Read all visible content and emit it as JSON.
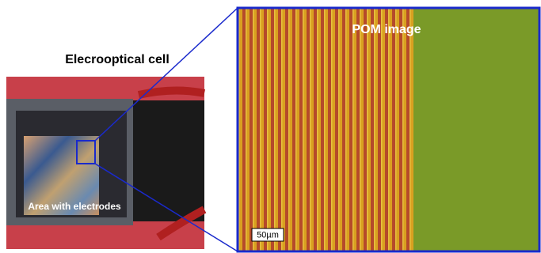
{
  "left_panel": {
    "title": "Elecrooptical cell",
    "label": "Area with electrodes"
  },
  "right_panel": {
    "title": "POM image",
    "scale_bar": "50µm"
  }
}
